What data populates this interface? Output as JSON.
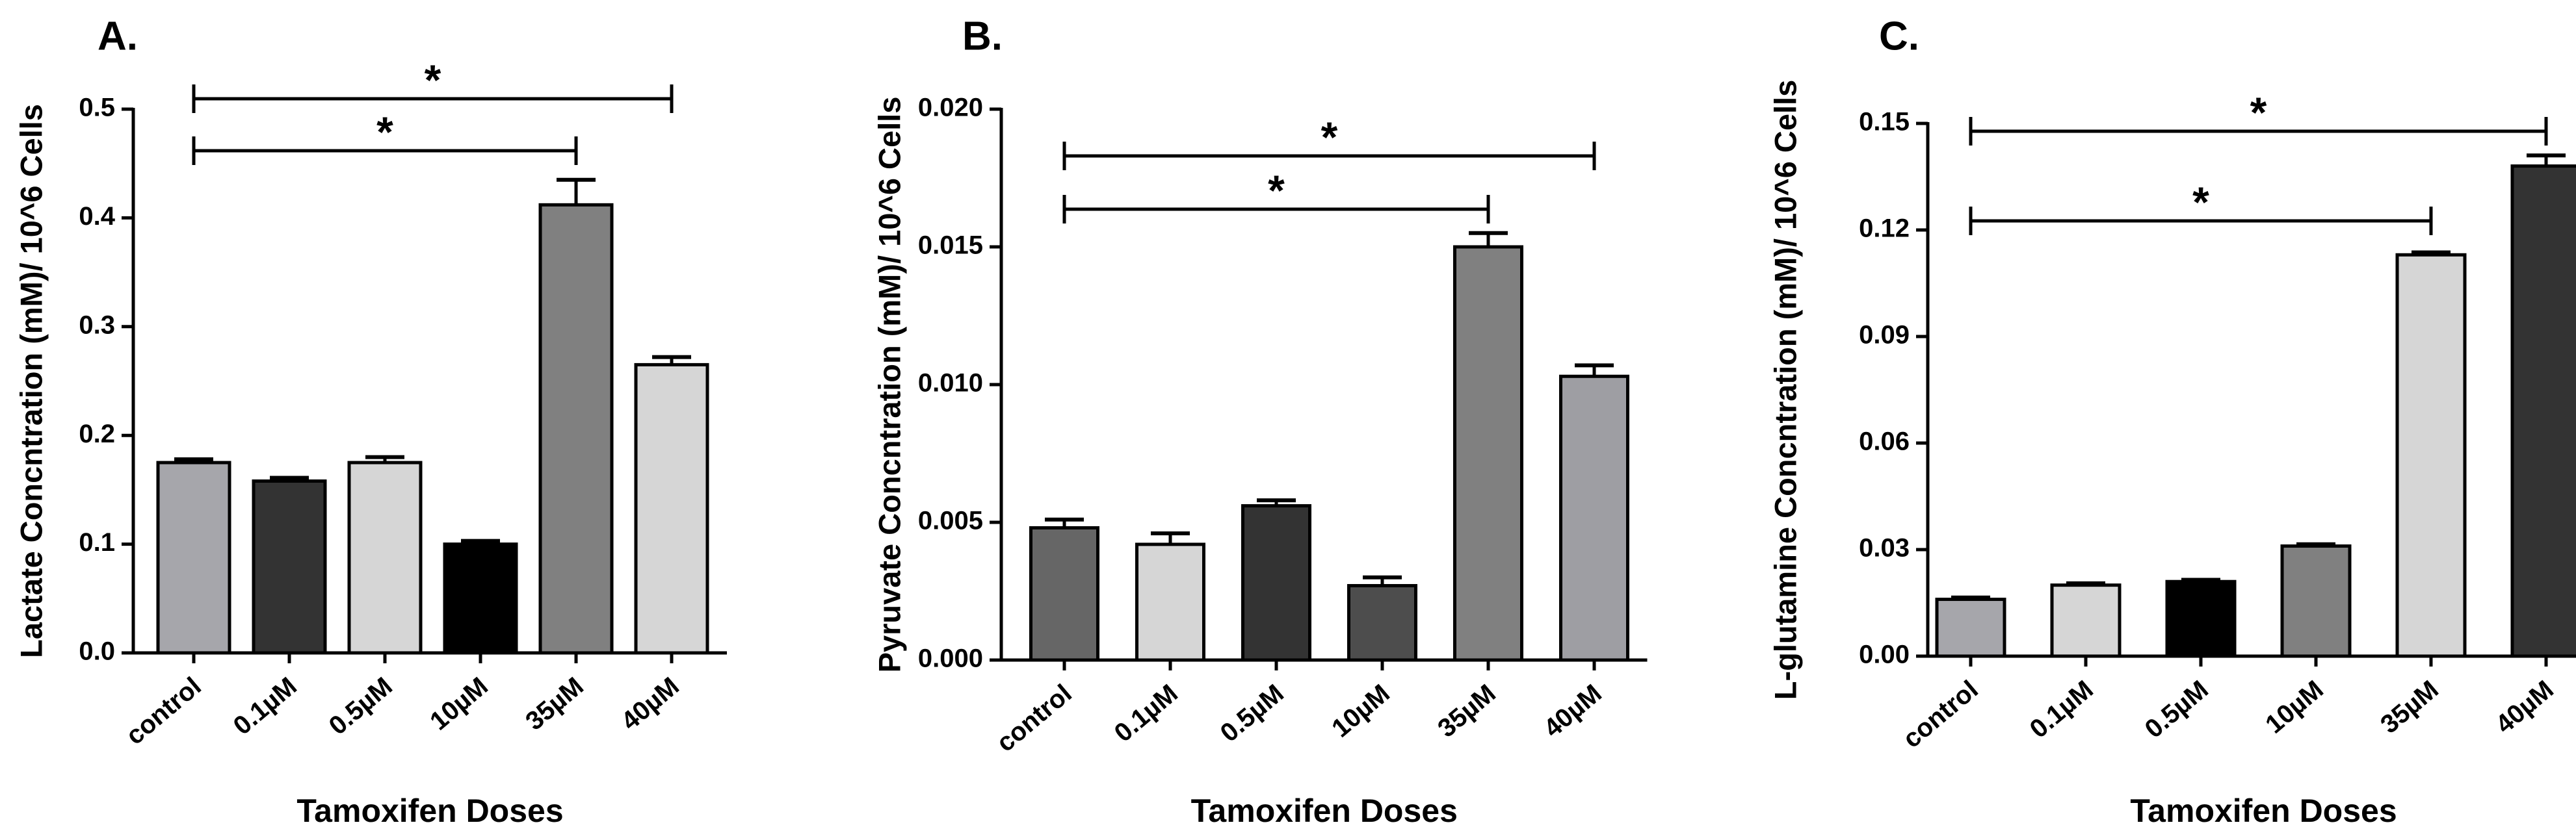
{
  "chart_data": [
    {
      "type": "bar",
      "panel_label": "A.",
      "categories": [
        "control",
        "0.1µM",
        "0.5µM",
        "10µM",
        "35µM",
        "40µM"
      ],
      "values": [
        0.175,
        0.158,
        0.175,
        0.1,
        0.412,
        0.265
      ],
      "errors": [
        0.003,
        0.003,
        0.005,
        0.003,
        0.023,
        0.007
      ],
      "colors": [
        "#a6a6ab",
        "#333333",
        "#d6d6d6",
        "#000000",
        "#808080",
        "#d6d6d6"
      ],
      "xlabel": "Tamoxifen Doses",
      "ylabel": "Lactate Concntration (mM)/ 10^6 Cells",
      "ylim": [
        0,
        0.5
      ],
      "yticks": [
        "0.0",
        "0.1",
        "0.2",
        "0.3",
        "0.4",
        "0.5"
      ],
      "significance": [
        {
          "from": "control",
          "to": "35µM",
          "label": "*"
        },
        {
          "from": "control",
          "to": "40µM",
          "label": "*"
        }
      ]
    },
    {
      "type": "bar",
      "panel_label": "B.",
      "categories": [
        "control",
        "0.1µM",
        "0.5µM",
        "10µM",
        "35µM",
        "40µM"
      ],
      "values": [
        0.0048,
        0.0042,
        0.0056,
        0.0027,
        0.015,
        0.0103
      ],
      "errors": [
        0.0003,
        0.0004,
        0.0002,
        0.0003,
        0.0005,
        0.0004
      ],
      "colors": [
        "#666666",
        "#d6d6d6",
        "#333333",
        "#4d4d4d",
        "#808080",
        "#9e9ea3"
      ],
      "xlabel": "Tamoxifen Doses",
      "ylabel": "Pyruvate Concntration (mM)/ 10^6 Cells",
      "ylim": [
        0,
        0.02
      ],
      "yticks": [
        "0.000",
        "0.005",
        "0.010",
        "0.015",
        "0.020"
      ],
      "significance": [
        {
          "from": "control",
          "to": "35µM",
          "label": "*"
        },
        {
          "from": "control",
          "to": "40µM",
          "label": "*"
        }
      ]
    },
    {
      "type": "bar",
      "panel_label": "C.",
      "categories": [
        "control",
        "0.1µM",
        "0.5µM",
        "10µM",
        "35µM",
        "40µM"
      ],
      "values": [
        0.016,
        0.02,
        0.021,
        0.031,
        0.113,
        0.138
      ],
      "errors": [
        0.0005,
        0.0005,
        0.0005,
        0.0005,
        0.0007,
        0.003
      ],
      "colors": [
        "#a6a6ab",
        "#d6d6d6",
        "#000000",
        "#808080",
        "#d6d6d6",
        "#333333"
      ],
      "xlabel": "Tamoxifen Doses",
      "ylabel": "L-glutamine Concntration (mM)/ 10^6 Cells",
      "ylim": [
        0,
        0.15
      ],
      "yticks": [
        "0.00",
        "0.03",
        "0.06",
        "0.09",
        "0.12",
        "0.15"
      ],
      "significance": [
        {
          "from": "control",
          "to": "35µM",
          "label": "*"
        },
        {
          "from": "control",
          "to": "40µM",
          "label": "*"
        }
      ]
    }
  ]
}
